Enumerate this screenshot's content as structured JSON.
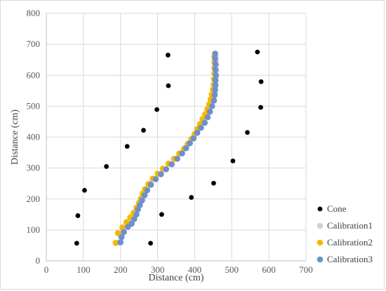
{
  "chart_data": {
    "type": "scatter",
    "xlabel": "Distance (cm)",
    "ylabel": "Distance (cm)",
    "xlim": [
      0,
      700
    ],
    "ylim": [
      0,
      800
    ],
    "xticks": [
      "0",
      "100",
      "200",
      "300",
      "400",
      "500",
      "600",
      "700"
    ],
    "yticks": [
      "0",
      "100",
      "200",
      "300",
      "400",
      "500",
      "600",
      "700",
      "800"
    ],
    "grid": true,
    "legend_position": "right",
    "series": [
      {
        "name": "Cone",
        "color": "#000000",
        "points": [
          [
            82,
            57
          ],
          [
            281,
            57
          ],
          [
            85,
            146
          ],
          [
            311,
            150
          ],
          [
            103,
            228
          ],
          [
            391,
            205
          ],
          [
            162,
            305
          ],
          [
            451,
            251
          ],
          [
            218,
            370
          ],
          [
            503,
            323
          ],
          [
            262,
            422
          ],
          [
            542,
            415
          ],
          [
            298,
            489
          ],
          [
            578,
            496
          ],
          [
            329,
            566
          ],
          [
            579,
            579
          ],
          [
            328,
            665
          ],
          [
            569,
            675
          ]
        ]
      },
      {
        "name": "Calibration1",
        "color": "#d0d0d0",
        "points": [
          [
            196,
            60
          ],
          [
            200,
            80
          ],
          [
            208,
            100
          ],
          [
            217,
            122
          ],
          [
            228,
            128
          ],
          [
            236,
            145
          ],
          [
            244,
            162
          ],
          [
            252,
            182
          ],
          [
            259,
            200
          ],
          [
            265,
            218
          ],
          [
            272,
            235
          ],
          [
            280,
            250
          ],
          [
            290,
            265
          ],
          [
            302,
            280
          ],
          [
            315,
            296
          ],
          [
            330,
            315
          ],
          [
            346,
            330
          ],
          [
            360,
            348
          ],
          [
            374,
            366
          ],
          [
            385,
            382
          ],
          [
            395,
            398
          ],
          [
            405,
            415
          ],
          [
            414,
            432
          ],
          [
            422,
            448
          ],
          [
            430,
            464
          ],
          [
            436,
            480
          ],
          [
            442,
            496
          ],
          [
            447,
            512
          ],
          [
            451,
            528
          ],
          [
            454,
            545
          ],
          [
            456,
            562
          ],
          [
            457,
            580
          ],
          [
            458,
            597
          ],
          [
            458,
            614
          ],
          [
            458,
            632
          ],
          [
            457,
            648
          ],
          [
            456,
            662
          ]
        ]
      },
      {
        "name": "Calibration2",
        "color": "#f5b800",
        "points": [
          [
            187,
            58
          ],
          [
            193,
            90
          ],
          [
            205,
            108
          ],
          [
            216,
            125
          ],
          [
            226,
            140
          ],
          [
            235,
            155
          ],
          [
            243,
            172
          ],
          [
            250,
            188
          ],
          [
            255,
            202
          ],
          [
            260,
            218
          ],
          [
            266,
            232
          ],
          [
            275,
            248
          ],
          [
            287,
            266
          ],
          [
            300,
            282
          ],
          [
            314,
            298
          ],
          [
            329,
            314
          ],
          [
            344,
            330
          ],
          [
            358,
            346
          ],
          [
            371,
            362
          ],
          [
            381,
            378
          ],
          [
            391,
            394
          ],
          [
            400,
            410
          ],
          [
            407,
            426
          ],
          [
            414,
            442
          ],
          [
            421,
            458
          ],
          [
            428,
            474
          ],
          [
            434,
            490
          ],
          [
            439,
            506
          ],
          [
            443,
            522
          ],
          [
            446,
            538
          ],
          [
            449,
            554
          ],
          [
            451,
            570
          ],
          [
            452,
            588
          ],
          [
            453,
            606
          ],
          [
            453,
            624
          ],
          [
            453,
            642
          ],
          [
            453,
            660
          ]
        ]
      },
      {
        "name": "Calibration3",
        "color": "#6d8fce",
        "points": [
          [
            200,
            60
          ],
          [
            203,
            77
          ],
          [
            209,
            93
          ],
          [
            220,
            110
          ],
          [
            230,
            120
          ],
          [
            237,
            135
          ],
          [
            243,
            150
          ],
          [
            247,
            166
          ],
          [
            252,
            180
          ],
          [
            258,
            195
          ],
          [
            265,
            212
          ],
          [
            272,
            228
          ],
          [
            282,
            246
          ],
          [
            295,
            264
          ],
          [
            309,
            280
          ],
          [
            323,
            296
          ],
          [
            338,
            312
          ],
          [
            353,
            330
          ],
          [
            366,
            347
          ],
          [
            377,
            364
          ],
          [
            387,
            380
          ],
          [
            397,
            396
          ],
          [
            407,
            414
          ],
          [
            417,
            430
          ],
          [
            427,
            446
          ],
          [
            435,
            464
          ],
          [
            441,
            482
          ],
          [
            447,
            500
          ],
          [
            452,
            518
          ],
          [
            454,
            536
          ],
          [
            455,
            552
          ],
          [
            456,
            568
          ],
          [
            456,
            584
          ],
          [
            457,
            600
          ],
          [
            456,
            618
          ],
          [
            456,
            636
          ],
          [
            455,
            654
          ],
          [
            455,
            670
          ]
        ]
      }
    ]
  }
}
